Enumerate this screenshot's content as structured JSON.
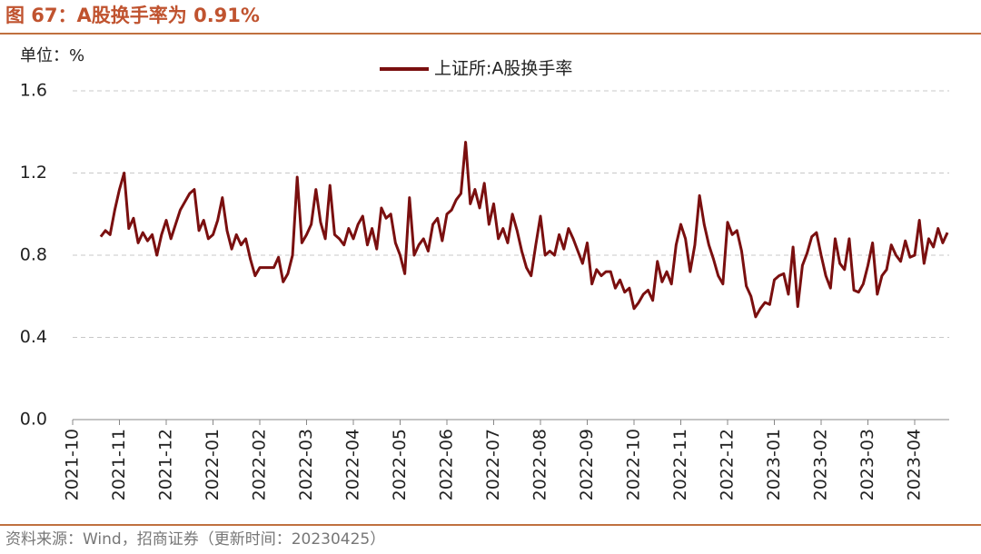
{
  "chart_data": {
    "type": "line",
    "title": "图 67：A股换手率为 0.91%",
    "unit_label": "单位：%",
    "source": "资料来源：Wind，招商证券（更新时间：20230425）",
    "legend": "top",
    "grid": true,
    "ylim": [
      0,
      1.6
    ],
    "yticks": [
      {
        "value": 0,
        "label": "0.0"
      },
      0.4,
      0.8,
      1.2,
      1.6
    ],
    "categories": [
      "2021-10",
      null,
      null,
      null,
      null,
      null,
      null,
      null,
      null,
      null,
      "2021-11",
      null,
      null,
      null,
      null,
      null,
      null,
      null,
      null,
      null,
      "2021-12",
      null,
      null,
      null,
      null,
      null,
      null,
      null,
      null,
      null,
      "2022-01",
      null,
      null,
      null,
      null,
      null,
      null,
      null,
      null,
      null,
      "2022-02",
      null,
      null,
      null,
      null,
      null,
      null,
      null,
      null,
      null,
      "2022-03",
      null,
      null,
      null,
      null,
      null,
      null,
      null,
      null,
      null,
      "2022-04",
      null,
      null,
      null,
      null,
      null,
      null,
      null,
      null,
      null,
      "2022-05",
      null,
      null,
      null,
      null,
      null,
      null,
      null,
      null,
      null,
      "2022-06",
      null,
      null,
      null,
      null,
      null,
      null,
      null,
      null,
      null,
      "2022-07",
      null,
      null,
      null,
      null,
      null,
      null,
      null,
      null,
      null,
      "2022-08",
      null,
      null,
      null,
      null,
      null,
      null,
      null,
      null,
      null,
      "2022-09",
      null,
      null,
      null,
      null,
      null,
      null,
      null,
      null,
      null,
      "2022-10",
      null,
      null,
      null,
      null,
      null,
      null,
      null,
      null,
      null,
      "2022-11",
      null,
      null,
      null,
      null,
      null,
      null,
      null,
      null,
      null,
      "2022-12",
      null,
      null,
      null,
      null,
      null,
      null,
      null,
      null,
      null,
      "2023-01",
      null,
      null,
      null,
      null,
      null,
      null,
      null,
      null,
      null,
      "2023-02",
      null,
      null,
      null,
      null,
      null,
      null,
      null,
      null,
      null,
      "2023-03",
      null,
      null,
      null,
      null,
      null,
      null,
      null,
      null,
      null,
      "2023-04",
      null,
      null,
      null,
      null,
      null,
      null,
      null
    ],
    "series": [
      {
        "name": "上证所:A股换手率",
        "color": "#7a0f0f",
        "values": [
          null,
          null,
          null,
          null,
          null,
          null,
          0.89,
          0.92,
          0.9,
          1.02,
          1.12,
          1.2,
          0.93,
          0.98,
          0.86,
          0.91,
          0.87,
          0.9,
          0.8,
          0.9,
          0.97,
          0.88,
          0.95,
          1.02,
          1.06,
          1.1,
          1.12,
          0.92,
          0.97,
          0.88,
          0.9,
          0.97,
          1.08,
          0.92,
          0.83,
          0.9,
          0.85,
          0.88,
          0.78,
          0.7,
          0.74,
          0.74,
          0.74,
          0.74,
          0.79,
          0.67,
          0.71,
          0.8,
          1.18,
          0.86,
          0.9,
          0.95,
          1.12,
          0.96,
          0.88,
          1.14,
          0.9,
          0.88,
          0.85,
          0.93,
          0.88,
          0.95,
          0.99,
          0.85,
          0.93,
          0.83,
          1.03,
          0.98,
          1.0,
          0.86,
          0.8,
          0.71,
          1.08,
          0.8,
          0.85,
          0.88,
          0.82,
          0.95,
          0.98,
          0.87,
          1.0,
          1.02,
          1.07,
          1.1,
          1.35,
          1.05,
          1.12,
          1.03,
          1.15,
          0.95,
          1.05,
          0.88,
          0.93,
          0.86,
          1.0,
          0.92,
          0.82,
          0.74,
          0.7,
          0.85,
          0.99,
          0.8,
          0.82,
          0.8,
          0.9,
          0.83,
          0.93,
          0.88,
          0.82,
          0.76,
          0.86,
          0.66,
          0.73,
          0.7,
          0.72,
          0.72,
          0.64,
          0.68,
          0.62,
          0.64,
          0.54,
          0.57,
          0.61,
          0.63,
          0.58,
          0.77,
          0.67,
          0.72,
          0.66,
          0.85,
          0.95,
          0.88,
          0.72,
          0.85,
          1.09,
          0.95,
          0.85,
          0.78,
          0.7,
          0.66,
          0.96,
          0.9,
          0.92,
          0.82,
          0.65,
          0.6,
          0.5,
          0.54,
          0.57,
          0.56,
          0.68,
          0.7,
          0.71,
          0.61,
          0.84,
          0.55,
          0.75,
          0.81,
          0.89,
          0.91,
          0.8,
          0.7,
          0.64,
          0.88,
          0.76,
          0.73,
          0.88,
          0.63,
          0.62,
          0.66,
          0.75,
          0.86,
          0.61,
          0.7,
          0.73,
          0.85,
          0.8,
          0.77,
          0.87,
          0.79,
          0.8,
          0.97,
          0.76,
          0.88,
          0.84,
          0.93,
          0.86,
          0.91
        ]
      }
    ]
  }
}
